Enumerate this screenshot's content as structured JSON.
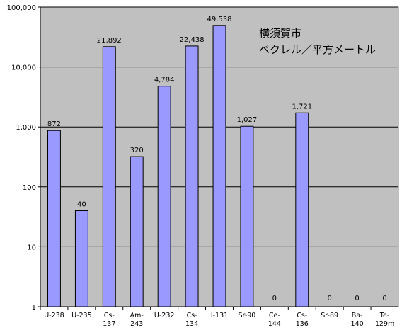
{
  "chart_data": {
    "type": "bar",
    "yscale": "log",
    "ylim": [
      1,
      100000
    ],
    "y_ticks": [
      "1",
      "10",
      "100",
      "1,000",
      "10,000",
      "100,000"
    ],
    "y_tick_values": [
      1,
      10,
      100,
      1000,
      10000,
      100000
    ],
    "grid": "horizontal",
    "categories": [
      [
        "U-238"
      ],
      [
        "U-235"
      ],
      [
        "Cs-",
        "137"
      ],
      [
        "Am-",
        "243"
      ],
      [
        "U-232"
      ],
      [
        "Cs-",
        "134"
      ],
      [
        "I-131"
      ],
      [
        "Sr-90"
      ],
      [
        "Ce-",
        "144"
      ],
      [
        "Cs-",
        "136"
      ],
      [
        "Sr-89"
      ],
      [
        "Ba-",
        "140"
      ],
      [
        "Te-",
        "129m"
      ]
    ],
    "values": [
      872,
      40,
      21892,
      320,
      4784,
      22438,
      49538,
      1027,
      0,
      1721,
      0,
      0,
      0
    ],
    "data_labels": [
      "872",
      "40",
      "21,892",
      "320",
      "4,784",
      "22,438",
      "49,538",
      "1,027",
      "0",
      "1,721",
      "0",
      "0",
      "0"
    ],
    "annotation": [
      "横須賀市",
      "ベクレル／平方メートル"
    ],
    "colors": {
      "bar_fill": "#9999ff",
      "bar_stroke": "#000000",
      "plot_bg": "#c0c0c0",
      "grid": "#000000"
    }
  }
}
